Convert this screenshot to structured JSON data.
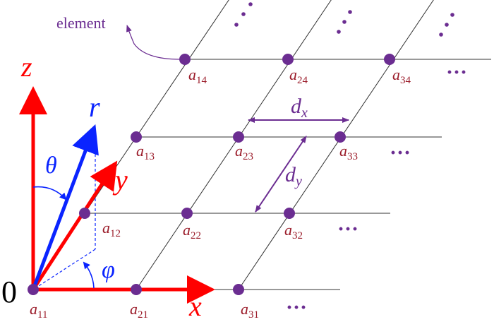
{
  "origin_label": "0",
  "axes": {
    "x": "x",
    "y": "y",
    "z": "z",
    "r": "r"
  },
  "angles": {
    "theta": "θ",
    "phi": "φ"
  },
  "spacing": {
    "dx_main": "d",
    "dx_sub": "x",
    "dy_main": "d",
    "dy_sub": "y"
  },
  "annotation": "element",
  "ellipsis": "···",
  "elements": [
    {
      "main": "a",
      "sub": "11"
    },
    {
      "main": "a",
      "sub": "21"
    },
    {
      "main": "a",
      "sub": "31"
    },
    {
      "main": "a",
      "sub": "12"
    },
    {
      "main": "a",
      "sub": "22"
    },
    {
      "main": "a",
      "sub": "32"
    },
    {
      "main": "a",
      "sub": "13"
    },
    {
      "main": "a",
      "sub": "23"
    },
    {
      "main": "a",
      "sub": "33"
    },
    {
      "main": "a",
      "sub": "14"
    },
    {
      "main": "a",
      "sub": "24"
    },
    {
      "main": "a",
      "sub": "34"
    }
  ]
}
